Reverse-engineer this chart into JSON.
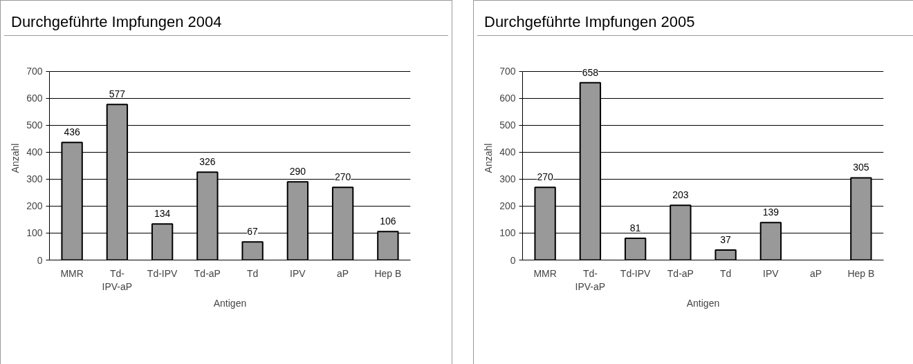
{
  "chart_data": [
    {
      "type": "bar",
      "title": "Durchgeführte Impfungen 2004",
      "xlabel": "Antigen",
      "ylabel": "Anzahl",
      "categories": [
        "MMR",
        "Td-IPV-aP",
        "Td-IPV",
        "Td-aP",
        "Td",
        "IPV",
        "aP",
        "Hep B"
      ],
      "values": [
        436,
        577,
        134,
        326,
        67,
        290,
        270,
        106
      ],
      "color": "#999999",
      "ylim": [
        0,
        700
      ],
      "yticks": [
        0,
        100,
        200,
        300,
        400,
        500,
        600,
        700
      ],
      "grid": "y",
      "data_labels": true
    },
    {
      "type": "bar",
      "title": "Durchgeführte Impfungen 2005",
      "xlabel": "Antigen",
      "ylabel": "Anzahl",
      "categories": [
        "MMR",
        "Td-IPV-aP",
        "Td-IPV",
        "Td-aP",
        "Td",
        "IPV",
        "aP",
        "Hep B"
      ],
      "values": [
        270,
        658,
        81,
        203,
        37,
        139,
        null,
        305
      ],
      "color": "#999999",
      "ylim": [
        0,
        700
      ],
      "yticks": [
        0,
        100,
        200,
        300,
        400,
        500,
        600,
        700
      ],
      "grid": "y",
      "data_labels": true
    }
  ]
}
